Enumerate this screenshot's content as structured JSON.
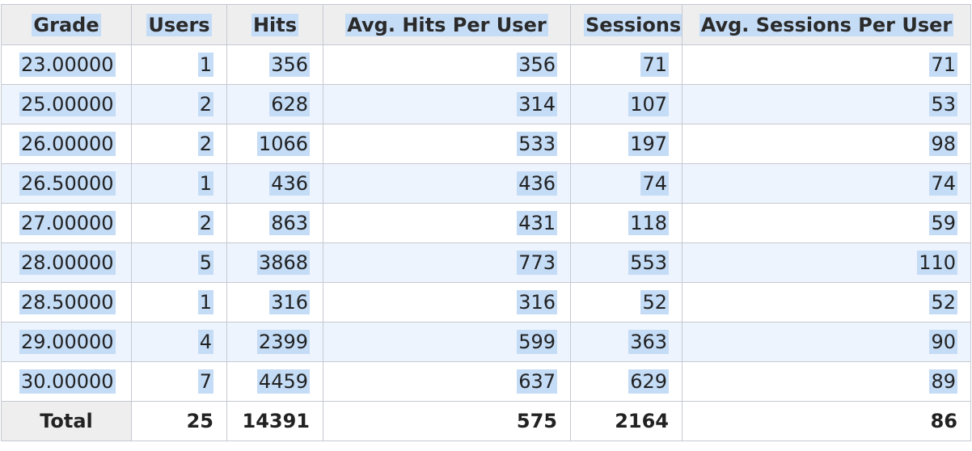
{
  "table": {
    "columns": [
      "Grade",
      "Users",
      "Hits",
      "Avg. Hits Per User",
      "Sessions",
      "Avg. Sessions Per User"
    ],
    "rows": [
      [
        "23.00000",
        "1",
        "356",
        "356",
        "71",
        "71"
      ],
      [
        "25.00000",
        "2",
        "628",
        "314",
        "107",
        "53"
      ],
      [
        "26.00000",
        "2",
        "1066",
        "533",
        "197",
        "98"
      ],
      [
        "26.50000",
        "1",
        "436",
        "436",
        "74",
        "74"
      ],
      [
        "27.00000",
        "2",
        "863",
        "431",
        "118",
        "59"
      ],
      [
        "28.00000",
        "5",
        "3868",
        "773",
        "553",
        "110"
      ],
      [
        "28.50000",
        "1",
        "316",
        "316",
        "52",
        "52"
      ],
      [
        "29.00000",
        "4",
        "2399",
        "599",
        "363",
        "90"
      ],
      [
        "30.00000",
        "7",
        "4459",
        "637",
        "629",
        "89"
      ]
    ],
    "total": [
      "Total",
      "25",
      "14391",
      "575",
      "2164",
      "86"
    ]
  },
  "colors": {
    "header_bg": "#eeeeee",
    "row_alt_bg": "#eef4fd",
    "selection_highlight": "#c5dcf6",
    "border": "#c6c9d2"
  }
}
